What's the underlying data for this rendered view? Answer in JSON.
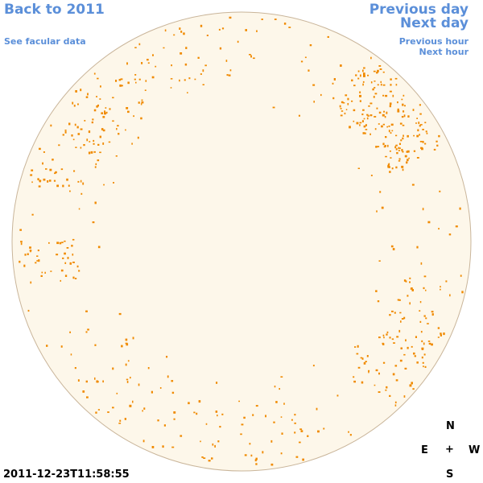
{
  "nav": {
    "back_label": "Back to 2011",
    "previous_day_label": "Previous day",
    "next_day_label": "Next day",
    "facular_label": "See facular data",
    "previous_hour_label": "Previous hour",
    "next_hour_label": "Next hour"
  },
  "compass": {
    "north": "N",
    "east": "E",
    "center": "+",
    "west": "W",
    "south": "S"
  },
  "timestamp": "2011-12-23T11:58:55",
  "colors": {
    "link": "#5b8fd9",
    "disk_fill": "#fdf7ea",
    "disk_border": "#c9b59a",
    "facula": "#f08a00"
  }
}
